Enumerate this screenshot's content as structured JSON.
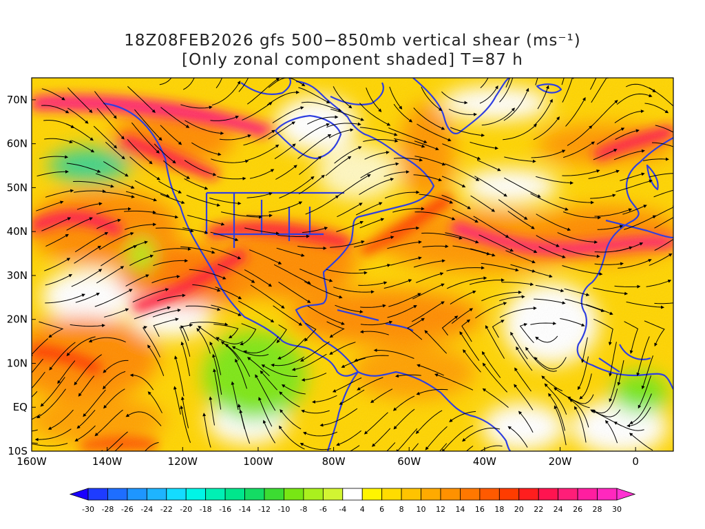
{
  "title": {
    "line1": "18Z08FEB2026 gfs 500−850mb vertical shear (ms⁻¹)",
    "line2": "[Only zonal component shaded] T=87 h"
  },
  "map": {
    "lon_range": [
      -160,
      10
    ],
    "lat_range": [
      -10,
      75
    ],
    "lon_ticks": [
      {
        "value": -160,
        "label": "160W"
      },
      {
        "value": -140,
        "label": "140W"
      },
      {
        "value": -120,
        "label": "120W"
      },
      {
        "value": -100,
        "label": "100W"
      },
      {
        "value": -80,
        "label": "80W"
      },
      {
        "value": -60,
        "label": "60W"
      },
      {
        "value": -40,
        "label": "40W"
      },
      {
        "value": -20,
        "label": "20W"
      },
      {
        "value": 0,
        "label": "0"
      }
    ],
    "lat_ticks": [
      {
        "value": 70,
        "label": "70N"
      },
      {
        "value": 60,
        "label": "60N"
      },
      {
        "value": 50,
        "label": "50N"
      },
      {
        "value": 40,
        "label": "40N"
      },
      {
        "value": 30,
        "label": "30N"
      },
      {
        "value": 20,
        "label": "20N"
      },
      {
        "value": 10,
        "label": "10N"
      },
      {
        "value": 0,
        "label": "EQ"
      },
      {
        "value": -10,
        "label": "10S"
      }
    ],
    "coastline_color": "#2f3fe0",
    "streamline_color": "#000000",
    "shading_variable": "zonal component of 500-850mb vertical shear (m/s)"
  },
  "colorbar": {
    "labels": [
      "-30",
      "-28",
      "-26",
      "-24",
      "-22",
      "-20",
      "-18",
      "-16",
      "-14",
      "-12",
      "-10",
      "-8",
      "-6",
      "-4",
      "4",
      "6",
      "8",
      "10",
      "12",
      "14",
      "16",
      "18",
      "20",
      "22",
      "24",
      "26",
      "28",
      "30"
    ],
    "colors": [
      "#1a00ff",
      "#1e3cff",
      "#1e6eff",
      "#1e96ff",
      "#1eb4ff",
      "#14dcff",
      "#00f5e6",
      "#00f0b4",
      "#00e68c",
      "#14dc64",
      "#3cdc32",
      "#78e614",
      "#aaf01e",
      "#d2f532",
      "#ffffff",
      "#fff500",
      "#ffdc00",
      "#ffc300",
      "#ffaa00",
      "#ff9100",
      "#ff7800",
      "#ff5a00",
      "#ff3c00",
      "#ff1e1e",
      "#ff1450",
      "#ff1e78",
      "#ff1ea0",
      "#ff28be",
      "#ff32d2"
    ]
  }
}
